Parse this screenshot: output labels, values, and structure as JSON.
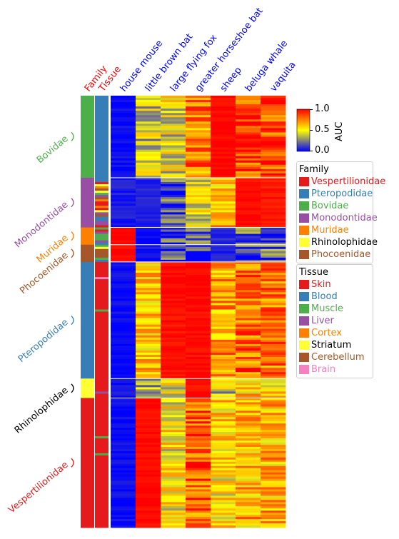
{
  "chart_data": {
    "type": "heatmap",
    "value": "AUC",
    "columns": [
      "house mouse",
      "little brown bat",
      "large flying fox",
      "greater horseshoe bat",
      "sheep",
      "beluga whale",
      "vaquita"
    ],
    "annotation_columns": [
      "Family",
      "Tissue"
    ],
    "colorbar": {
      "label": "AUC",
      "range": [
        0.0,
        1.0
      ],
      "ticks": [
        "1.0",
        "0.5",
        "0.0"
      ],
      "colors": [
        "#0000ff",
        "#ffff00",
        "#ff0000"
      ]
    },
    "row_groups": [
      {
        "family": "Bovidae",
        "tissue": "Blood",
        "fraction": 0.19,
        "auc": [
          0.02,
          0.4,
          0.45,
          0.75,
          0.99,
          0.88,
          0.87
        ]
      },
      {
        "family": "Monodontidae",
        "tissue": "Mixed",
        "fraction": 0.115,
        "auc": [
          0.05,
          0.07,
          0.13,
          0.45,
          0.62,
          0.98,
          0.96
        ]
      },
      {
        "family": "Muridae",
        "tissue": "Mixed",
        "fraction": 0.04,
        "auc": [
          0.99,
          0.03,
          0.12,
          0.15,
          0.08,
          0.18,
          0.2
        ]
      },
      {
        "family": "Phocoenidae",
        "tissue": "Mixed",
        "fraction": 0.04,
        "auc": [
          0.99,
          0.04,
          0.12,
          0.15,
          0.06,
          0.18,
          0.2
        ]
      },
      {
        "family": "Pteropodidae",
        "tissue": "Skin",
        "fraction": 0.27,
        "auc": [
          0.02,
          0.6,
          0.97,
          0.98,
          0.7,
          0.8,
          0.78
        ]
      },
      {
        "family": "Rhinolophidae",
        "tissue": "Skin",
        "fraction": 0.045,
        "auc": [
          0.03,
          0.3,
          0.45,
          0.98,
          0.4,
          0.6,
          0.6
        ]
      },
      {
        "family": "Vespertilionidae",
        "tissue": "Skin",
        "fraction": 0.3,
        "auc": [
          0.02,
          0.99,
          0.5,
          0.8,
          0.55,
          0.65,
          0.65
        ]
      }
    ]
  },
  "legend_family": {
    "title": "Family",
    "items": [
      {
        "label": "Vespertilionidae",
        "color": "#e41a1c"
      },
      {
        "label": "Pteropodidae",
        "color": "#377eb8"
      },
      {
        "label": "Bovidae",
        "color": "#4daf4a"
      },
      {
        "label": "Monodontidae",
        "color": "#984ea3"
      },
      {
        "label": "Muridae",
        "color": "#ff7f00"
      },
      {
        "label": "Rhinolophidae",
        "color": "#ffff33",
        "text_color": "#000000"
      },
      {
        "label": "Phocoenidae",
        "color": "#a65628"
      }
    ]
  },
  "legend_tissue": {
    "title": "Tissue",
    "items": [
      {
        "label": "Skin",
        "color": "#e41a1c"
      },
      {
        "label": "Blood",
        "color": "#377eb8"
      },
      {
        "label": "Muscle",
        "color": "#4daf4a"
      },
      {
        "label": "Liver",
        "color": "#984ea3"
      },
      {
        "label": "Cortex",
        "color": "#ff7f00"
      },
      {
        "label": "Striatum",
        "color": "#ffff33",
        "text_color": "#000000"
      },
      {
        "label": "Cerebellum",
        "color": "#a65628"
      },
      {
        "label": "Brain",
        "color": "#f781bf"
      }
    ]
  },
  "row_labels": [
    {
      "text": "Bovidae",
      "color": "#4daf4a"
    },
    {
      "text": "Monodontidae",
      "color": "#984ea3"
    },
    {
      "text": "Muridae",
      "color": "#ff7f00"
    },
    {
      "text": "Phocoenidae",
      "color": "#a65628"
    },
    {
      "text": "Pteropodidae",
      "color": "#377eb8"
    },
    {
      "text": "Rhinolophidae",
      "color": "#000000"
    },
    {
      "text": "Vespertilionidae",
      "color": "#e41a1c"
    }
  ],
  "colors": {
    "column_label": "#0000ff",
    "annotation_label": "#ff0000"
  }
}
